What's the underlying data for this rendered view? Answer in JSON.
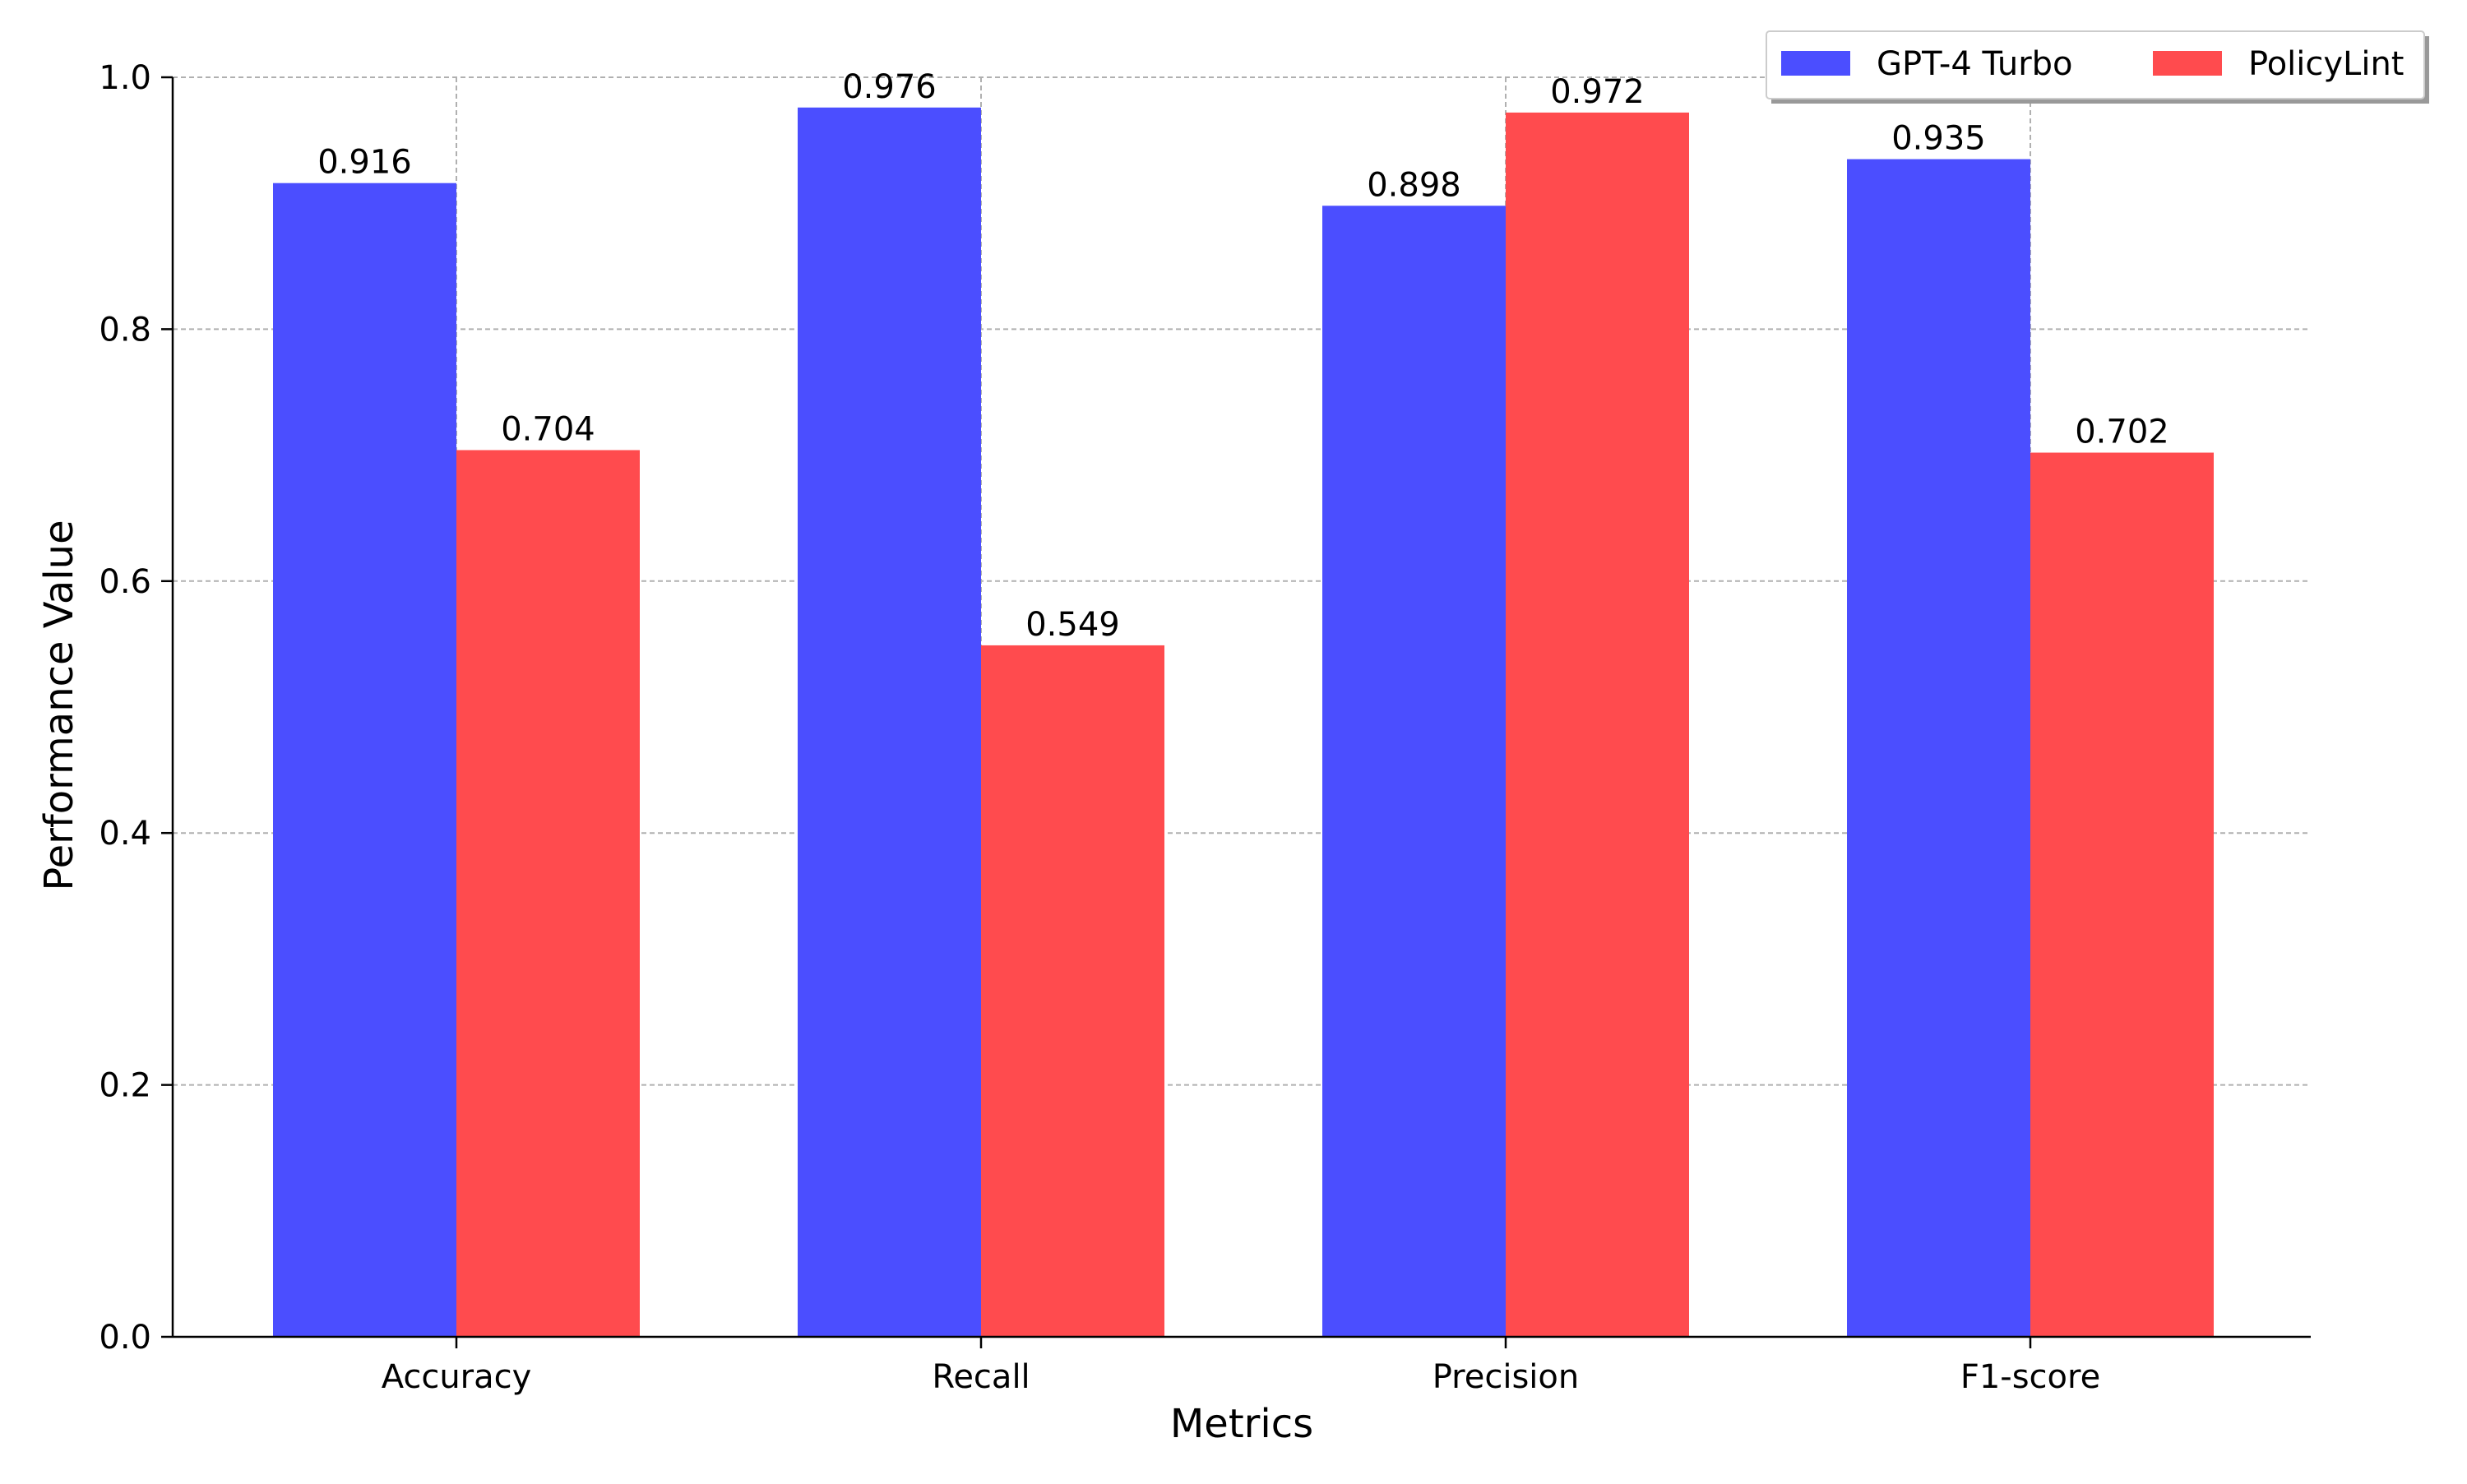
{
  "chart_data": {
    "type": "bar",
    "title": "",
    "xlabel": "Metrics",
    "ylabel": "Performance Value",
    "ylim": [
      0,
      1.0
    ],
    "yticks": [
      "0.0",
      "0.2",
      "0.4",
      "0.6",
      "0.8",
      "1.0"
    ],
    "categories": [
      "Accuracy",
      "Recall",
      "Precision",
      "F1-score"
    ],
    "series": [
      {
        "name": "GPT-4 Turbo",
        "color": "#4b4eff",
        "values": [
          0.916,
          0.976,
          0.898,
          0.935
        ],
        "labels": [
          "0.916",
          "0.976",
          "0.898",
          "0.935"
        ]
      },
      {
        "name": "PolicyLint",
        "color": "#ff4b4e",
        "values": [
          0.704,
          0.549,
          0.972,
          0.702
        ],
        "labels": [
          "0.704",
          "0.549",
          "0.972",
          "0.702"
        ]
      }
    ],
    "grid": true,
    "legend_position": "top-right"
  }
}
